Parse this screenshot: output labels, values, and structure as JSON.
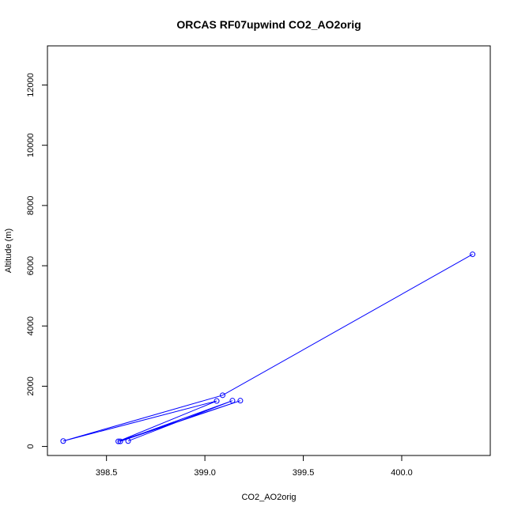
{
  "chart_data": {
    "type": "line",
    "title": "ORCAS RF07upwind CO2_AO2orig",
    "xlabel": "CO2_AO2orig",
    "ylabel": "Altitude (m)",
    "xlim": [
      398.2,
      400.45
    ],
    "ylim": [
      -300,
      13300
    ],
    "x_ticks": [
      398.5,
      399.0,
      399.5,
      400.0
    ],
    "x_tick_labels": [
      "398.5",
      "399.0",
      "399.5",
      "400.0"
    ],
    "y_ticks": [
      0,
      2000,
      4000,
      6000,
      8000,
      10000,
      12000
    ],
    "y_tick_labels": [
      "0",
      "2000",
      "4000",
      "6000",
      "8000",
      "10000",
      "12000"
    ],
    "grid": false,
    "series": [
      {
        "color": "#0000ff",
        "marker": "open-circle",
        "points": [
          {
            "x": 400.36,
            "y": 6380
          },
          {
            "x": 399.09,
            "y": 1700
          },
          {
            "x": 398.28,
            "y": 180
          },
          {
            "x": 399.06,
            "y": 1510
          },
          {
            "x": 398.56,
            "y": 170
          },
          {
            "x": 399.18,
            "y": 1520
          },
          {
            "x": 398.57,
            "y": 170
          },
          {
            "x": 399.14,
            "y": 1520
          },
          {
            "x": 398.61,
            "y": 180
          }
        ]
      }
    ]
  }
}
